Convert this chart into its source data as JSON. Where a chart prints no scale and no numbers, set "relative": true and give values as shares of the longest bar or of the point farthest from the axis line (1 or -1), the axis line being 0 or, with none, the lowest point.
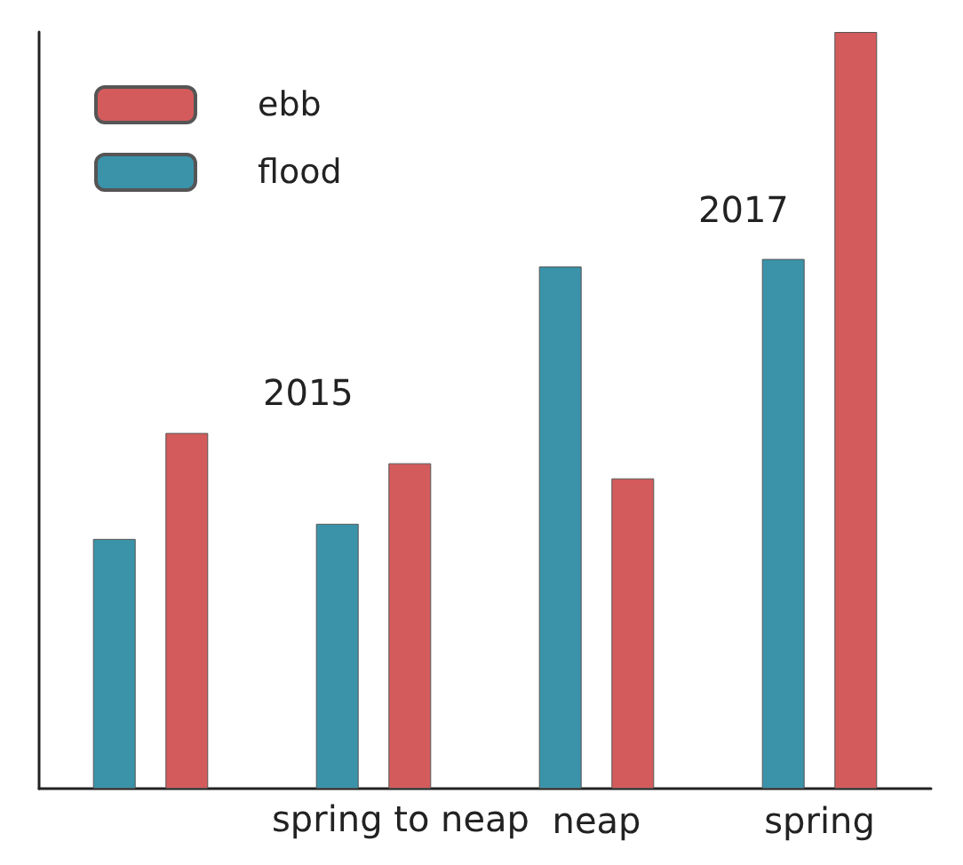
{
  "chart_data": {
    "type": "bar",
    "relative": true,
    "categories": [
      null,
      null,
      "neap",
      "spring"
    ],
    "series": [
      {
        "name": "ebb",
        "color": "#d45b5b",
        "values": [
          0.47,
          0.43,
          0.41,
          1
        ]
      },
      {
        "name": "flood",
        "color": "#3a93a9",
        "values": [
          0.33,
          0.35,
          0.69,
          0.7
        ]
      }
    ],
    "annotations": [
      "spring to neap",
      "2015",
      "2017"
    ],
    "legend": "top left",
    "grid": false
  }
}
